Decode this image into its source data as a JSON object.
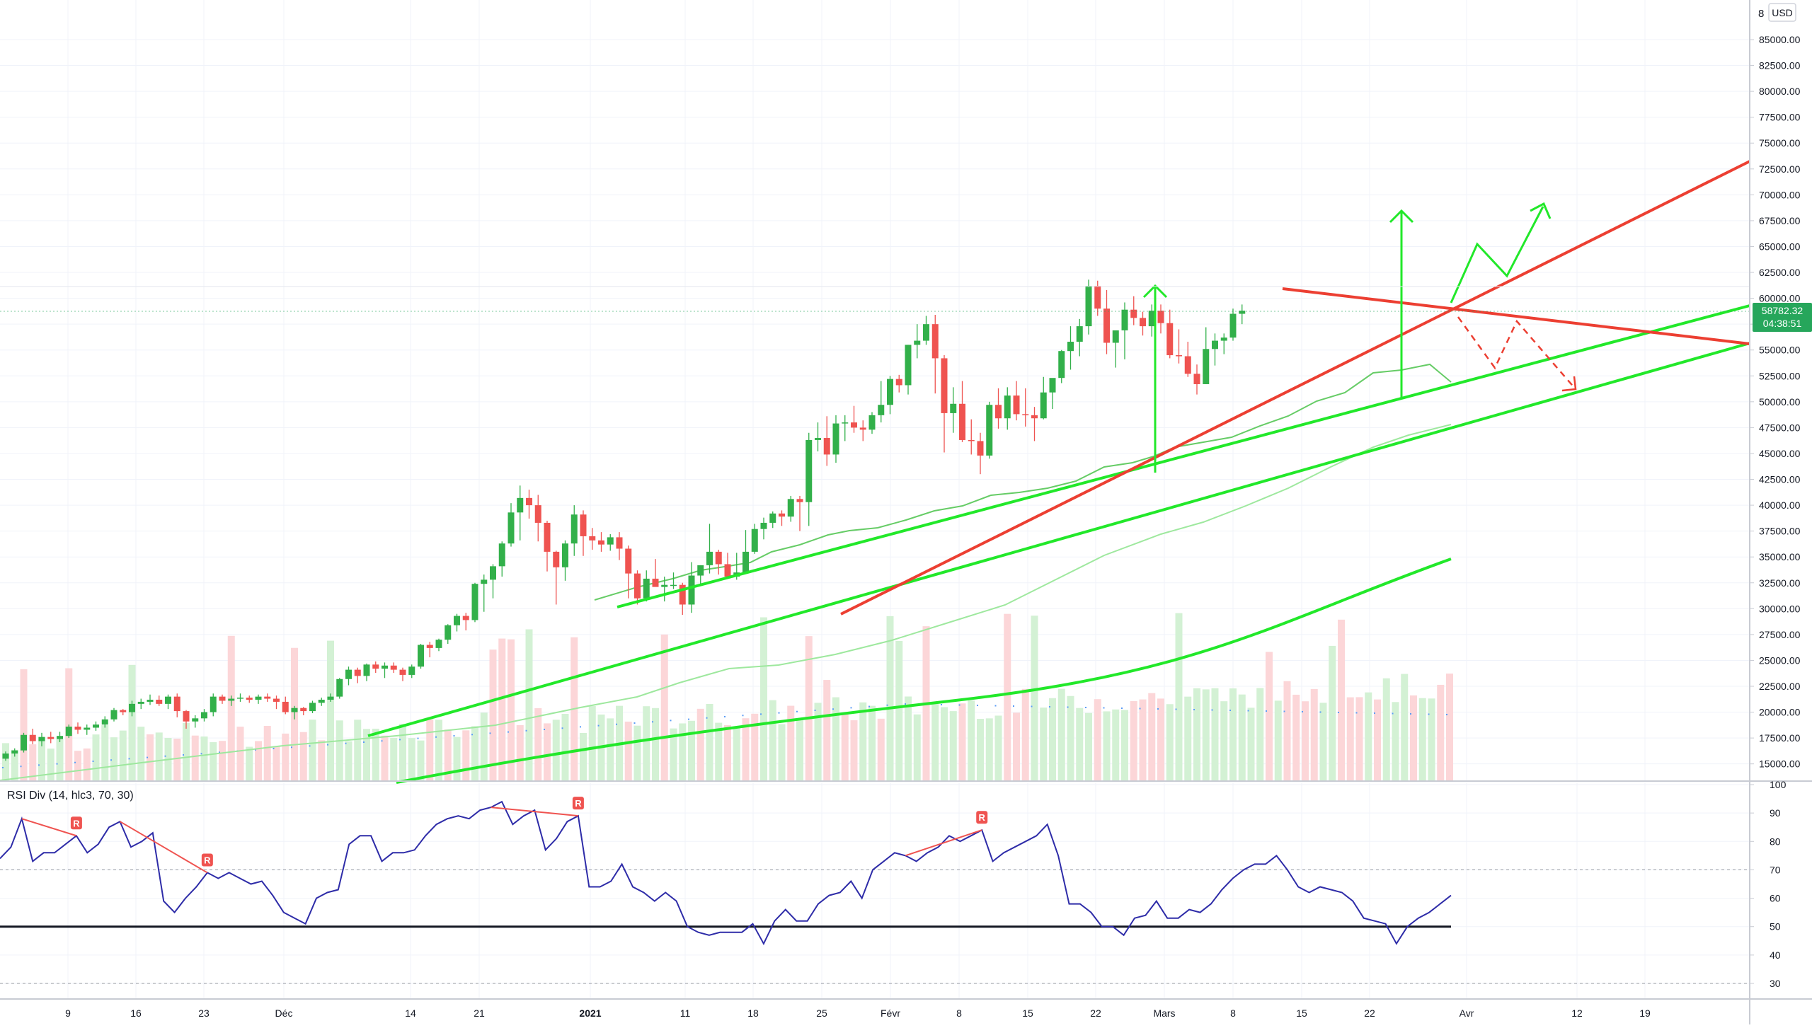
{
  "chart_data": [
    {
      "type": "candlestick",
      "currency": "USD",
      "last_price": "58782.32",
      "countdown": "04:38:51",
      "y_axis_labels": [
        "85000.00",
        "82500.00",
        "80000.00",
        "77500.00",
        "75000.00",
        "72500.00",
        "70000.00",
        "67500.00",
        "65000.00",
        "62500.00",
        "60000.00",
        "57500.00",
        "55000.00",
        "52500.00",
        "50000.00",
        "47500.00",
        "45000.00",
        "42500.00",
        "40000.00",
        "37500.00",
        "35000.00",
        "32500.00",
        "30000.00",
        "27500.00",
        "25000.00",
        "22500.00",
        "20000.00",
        "17500.00",
        "15000.00"
      ],
      "top_partial_label": "8",
      "x_axis_labels": [
        "9",
        "16",
        "23",
        "Déc",
        "14",
        "21",
        "2021",
        "11",
        "18",
        "25",
        "Févr",
        "8",
        "15",
        "22",
        "Mars",
        "8",
        "15",
        "22",
        "Avr",
        "12",
        "19"
      ],
      "x_axis_bold": [
        "2021"
      ],
      "grid": true,
      "candles_approx": [
        [
          15500,
          16200,
          15300,
          16000
        ],
        [
          16000,
          16500,
          15700,
          16300
        ],
        [
          16300,
          18000,
          16100,
          17800
        ],
        [
          17800,
          18400,
          16900,
          17200
        ],
        [
          17200,
          18000,
          16700,
          17600
        ],
        [
          17600,
          18100,
          17000,
          17400
        ],
        [
          17400,
          18100,
          17100,
          17700
        ],
        [
          17700,
          18800,
          17500,
          18600
        ],
        [
          18600,
          19000,
          17900,
          18300
        ],
        [
          18300,
          18800,
          17800,
          18500
        ],
        [
          18500,
          19100,
          18200,
          18800
        ],
        [
          18800,
          19600,
          18500,
          19300
        ],
        [
          19300,
          20400,
          19100,
          20200
        ],
        [
          20200,
          20300,
          19700,
          20000
        ],
        [
          20000,
          21100,
          19600,
          20800
        ],
        [
          20800,
          21300,
          20300,
          21000
        ],
        [
          21000,
          21700,
          20700,
          21200
        ],
        [
          21200,
          21600,
          20600,
          20800
        ],
        [
          20800,
          21700,
          20300,
          21500
        ],
        [
          21500,
          21800,
          19500,
          20100
        ],
        [
          20100,
          20200,
          18400,
          19100
        ],
        [
          19100,
          19700,
          18500,
          19400
        ],
        [
          19400,
          20300,
          19100,
          20000
        ],
        [
          20000,
          21800,
          19600,
          21500
        ],
        [
          21500,
          21700,
          20800,
          21100
        ],
        [
          21100,
          21600,
          20600,
          21300
        ],
        [
          21300,
          21800,
          21000,
          21400
        ],
        [
          21400,
          21600,
          20900,
          21200
        ],
        [
          21200,
          21700,
          20800,
          21500
        ],
        [
          21500,
          21800,
          21000,
          21300
        ],
        [
          21300,
          21600,
          20300,
          21000
        ],
        [
          21000,
          21500,
          19800,
          20000
        ],
        [
          20000,
          20600,
          19300,
          20400
        ],
        [
          20400,
          20500,
          19700,
          20100
        ],
        [
          20100,
          21100,
          19900,
          20900
        ],
        [
          20900,
          21400,
          20600,
          21200
        ],
        [
          21200,
          21800,
          21000,
          21500
        ],
        [
          21500,
          23300,
          21300,
          23200
        ],
        [
          23200,
          24400,
          22600,
          24100
        ],
        [
          24100,
          24300,
          22800,
          23500
        ],
        [
          23500,
          24700,
          23000,
          24600
        ],
        [
          24600,
          24900,
          23800,
          24200
        ],
        [
          24200,
          24800,
          23300,
          24500
        ],
        [
          24500,
          24800,
          23800,
          24100
        ],
        [
          24100,
          24300,
          23000,
          23600
        ],
        [
          23600,
          24600,
          23300,
          24400
        ],
        [
          24400,
          26600,
          24200,
          26500
        ],
        [
          26500,
          26800,
          25300,
          26200
        ],
        [
          26200,
          27100,
          25900,
          27000
        ],
        [
          27000,
          28500,
          26600,
          28400
        ],
        [
          28400,
          29500,
          27800,
          29300
        ],
        [
          29300,
          29600,
          27900,
          28900
        ],
        [
          28900,
          32500,
          28700,
          32400
        ],
        [
          32400,
          33300,
          29700,
          32800
        ],
        [
          32800,
          34300,
          31000,
          34100
        ],
        [
          34100,
          36500,
          33100,
          36300
        ],
        [
          36300,
          40200,
          36000,
          39300
        ],
        [
          39300,
          41900,
          36600,
          40700
        ],
        [
          40700,
          41500,
          38700,
          40000
        ],
        [
          40000,
          41000,
          36500,
          38300
        ],
        [
          38300,
          38500,
          33600,
          35500
        ],
        [
          35500,
          35600,
          30400,
          34000
        ],
        [
          34000,
          36600,
          32700,
          36300
        ],
        [
          36300,
          40000,
          35100,
          39100
        ],
        [
          39100,
          39500,
          35100,
          37000
        ],
        [
          37000,
          37800,
          35700,
          36600
        ],
        [
          36600,
          37400,
          35500,
          36200
        ],
        [
          36200,
          37200,
          35600,
          36900
        ],
        [
          36900,
          37400,
          34700,
          35800
        ],
        [
          35800,
          36100,
          31000,
          33400
        ],
        [
          33400,
          33700,
          30400,
          31000
        ],
        [
          31000,
          33700,
          30700,
          32900
        ],
        [
          32900,
          34800,
          32200,
          32100
        ],
        [
          32100,
          33100,
          30700,
          32300
        ],
        [
          32300,
          33500,
          31900,
          32300
        ],
        [
          32300,
          32500,
          29400,
          30400
        ],
        [
          30400,
          34500,
          29600,
          33200
        ],
        [
          33200,
          34200,
          32200,
          34200
        ],
        [
          34200,
          38200,
          33400,
          35500
        ],
        [
          35500,
          35700,
          33300,
          34300
        ],
        [
          34300,
          35400,
          33000,
          33100
        ],
        [
          33100,
          35400,
          32800,
          33500
        ],
        [
          33500,
          37600,
          33400,
          35500
        ],
        [
          35500,
          38200,
          35300,
          37700
        ],
        [
          37700,
          38800,
          36700,
          38300
        ],
        [
          38300,
          39400,
          37800,
          39200
        ],
        [
          39200,
          39500,
          38000,
          38900
        ],
        [
          38900,
          40900,
          38400,
          40600
        ],
        [
          40600,
          40900,
          37500,
          40300
        ],
        [
          40300,
          47000,
          38000,
          46300
        ],
        [
          46300,
          48000,
          45200,
          46500
        ],
        [
          46500,
          48600,
          43800,
          44900
        ],
        [
          44900,
          48700,
          44100,
          47900
        ],
        [
          47900,
          48700,
          46200,
          48000
        ],
        [
          48000,
          49600,
          47000,
          47500
        ],
        [
          47500,
          48200,
          46200,
          47300
        ],
        [
          47300,
          49000,
          46900,
          48700
        ],
        [
          48700,
          52000,
          48000,
          49700
        ],
        [
          49700,
          52500,
          48800,
          52200
        ],
        [
          52200,
          52600,
          50900,
          51600
        ],
        [
          51600,
          55500,
          50700,
          55500
        ],
        [
          55500,
          57500,
          54200,
          55900
        ],
        [
          55900,
          58300,
          55500,
          57500
        ],
        [
          57500,
          58400,
          50800,
          54200
        ],
        [
          54200,
          54500,
          45100,
          48900
        ],
        [
          48900,
          51400,
          47000,
          49800
        ],
        [
          49800,
          52000,
          46100,
          46300
        ],
        [
          46300,
          48300,
          44900,
          46200
        ],
        [
          46200,
          47000,
          43000,
          44800
        ],
        [
          44800,
          50000,
          44500,
          49700
        ],
        [
          49700,
          51300,
          47400,
          48400
        ],
        [
          48400,
          51400,
          47300,
          50600
        ],
        [
          50600,
          52000,
          48200,
          48800
        ],
        [
          48800,
          51300,
          47600,
          48700
        ],
        [
          48700,
          49500,
          46200,
          48400
        ],
        [
          48400,
          52400,
          48300,
          50900
        ],
        [
          50900,
          51800,
          49300,
          52300
        ],
        [
          52300,
          55000,
          51800,
          54900
        ],
        [
          54900,
          57300,
          53100,
          55800
        ],
        [
          55800,
          58000,
          54400,
          57300
        ],
        [
          57300,
          61800,
          56500,
          61200
        ],
        [
          61200,
          61700,
          58300,
          59000
        ],
        [
          59000,
          60800,
          54600,
          55700
        ],
        [
          55700,
          56800,
          53300,
          56900
        ],
        [
          56900,
          59600,
          54100,
          58900
        ],
        [
          58900,
          60200,
          57400,
          58100
        ],
        [
          58100,
          58700,
          56400,
          57300
        ],
        [
          57300,
          59400,
          56300,
          58800
        ],
        [
          58800,
          59400,
          56600,
          57600
        ],
        [
          57600,
          58900,
          54200,
          54500
        ],
        [
          54500,
          57000,
          53700,
          54400
        ],
        [
          54400,
          55800,
          52400,
          52700
        ],
        [
          52700,
          53600,
          50700,
          51700
        ],
        [
          51700,
          57200,
          51700,
          55100
        ],
        [
          55100,
          56600,
          53500,
          55900
        ],
        [
          55900,
          56600,
          54600,
          56200
        ],
        [
          56200,
          59000,
          55900,
          58500
        ],
        [
          58500,
          59400,
          57500,
          58800
        ]
      ],
      "volume_bars": 161,
      "moving_averages": [
        "short",
        "long"
      ],
      "annotations": "Trend lines (green up-channel, red trendlines), green breakout arrows, red dashed projected path"
    },
    {
      "type": "line",
      "title": "RSI Div (14, hlc3, 70, 30)",
      "ylim": [
        25,
        100
      ],
      "y_axis_labels": [
        "100",
        "90",
        "80",
        "70",
        "60",
        "50",
        "40",
        "30"
      ],
      "levels": [
        70,
        30
      ],
      "baseline": 50,
      "divergence_marker": "R",
      "values": [
        74,
        78,
        88,
        73,
        76,
        76,
        79,
        82,
        76,
        79,
        85,
        87,
        78,
        80,
        83,
        59,
        55,
        60,
        64,
        69,
        67,
        69,
        67,
        65,
        66,
        61,
        55,
        53,
        51,
        60,
        62,
        63,
        79,
        82,
        82,
        73,
        76,
        76,
        77,
        82,
        86,
        88,
        89,
        88,
        91,
        92,
        94,
        86,
        89,
        91,
        77,
        81,
        87,
        89,
        64,
        64,
        66,
        72,
        64,
        62,
        59,
        62,
        59,
        50,
        48,
        47,
        48,
        48,
        48,
        51,
        44,
        52,
        56,
        52,
        52,
        58,
        61,
        62,
        66,
        60,
        70,
        73,
        76,
        75,
        73,
        76,
        78,
        82,
        80,
        82,
        84,
        73,
        76,
        78,
        80,
        82,
        86,
        75,
        58,
        58,
        55,
        50,
        50,
        47,
        53,
        54,
        59,
        53,
        53,
        56,
        55,
        58,
        63,
        67,
        70,
        72,
        72,
        75,
        70,
        64,
        62,
        64,
        63,
        62,
        59,
        53,
        52,
        51,
        44,
        50,
        53,
        55,
        58,
        61
      ]
    }
  ]
}
